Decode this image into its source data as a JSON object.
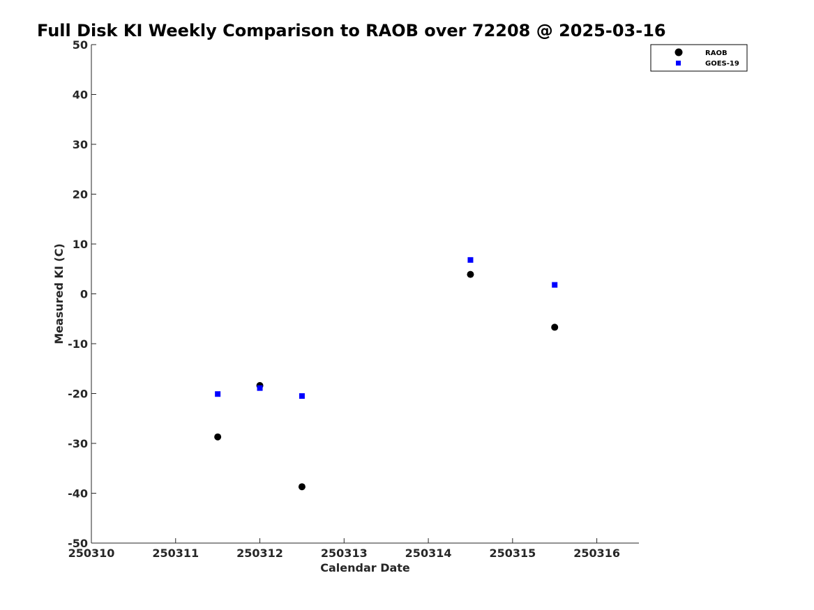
{
  "chart_data": {
    "type": "scatter",
    "title": "Full Disk KI Weekly Comparison to RAOB over 72208 @ 2025-03-16",
    "xlabel": "Calendar Date",
    "ylabel": "Measured KI (C)",
    "xlim": [
      250310,
      250316.5
    ],
    "ylim": [
      -50,
      50
    ],
    "xticks": [
      250310,
      250311,
      250312,
      250313,
      250314,
      250315,
      250316
    ],
    "xtick_labels": [
      "250310",
      "250311",
      "250312",
      "250313",
      "250314",
      "250315",
      "250316"
    ],
    "yticks": [
      50,
      40,
      30,
      20,
      10,
      0,
      -10,
      -20,
      -30,
      -40,
      -50
    ],
    "ytick_labels": [
      "50",
      "40",
      "30",
      "20",
      "10",
      "0",
      "-10",
      "-20",
      "-30",
      "-40",
      "-50"
    ],
    "grid": false,
    "legend_position": "top-right",
    "series": [
      {
        "name": "RAOB",
        "marker": "circle",
        "color": "#000000",
        "x": [
          250311.5,
          250312.0,
          250312.5,
          250314.5,
          250315.5
        ],
        "y": [
          -28.7,
          -18.4,
          -38.7,
          3.9,
          -6.7
        ]
      },
      {
        "name": "GOES-19",
        "marker": "square",
        "color": "#0000ff",
        "x": [
          250311.5,
          250312.0,
          250312.5,
          250314.5,
          250315.5
        ],
        "y": [
          -20.1,
          -18.9,
          -20.5,
          6.8,
          1.8
        ]
      }
    ]
  }
}
